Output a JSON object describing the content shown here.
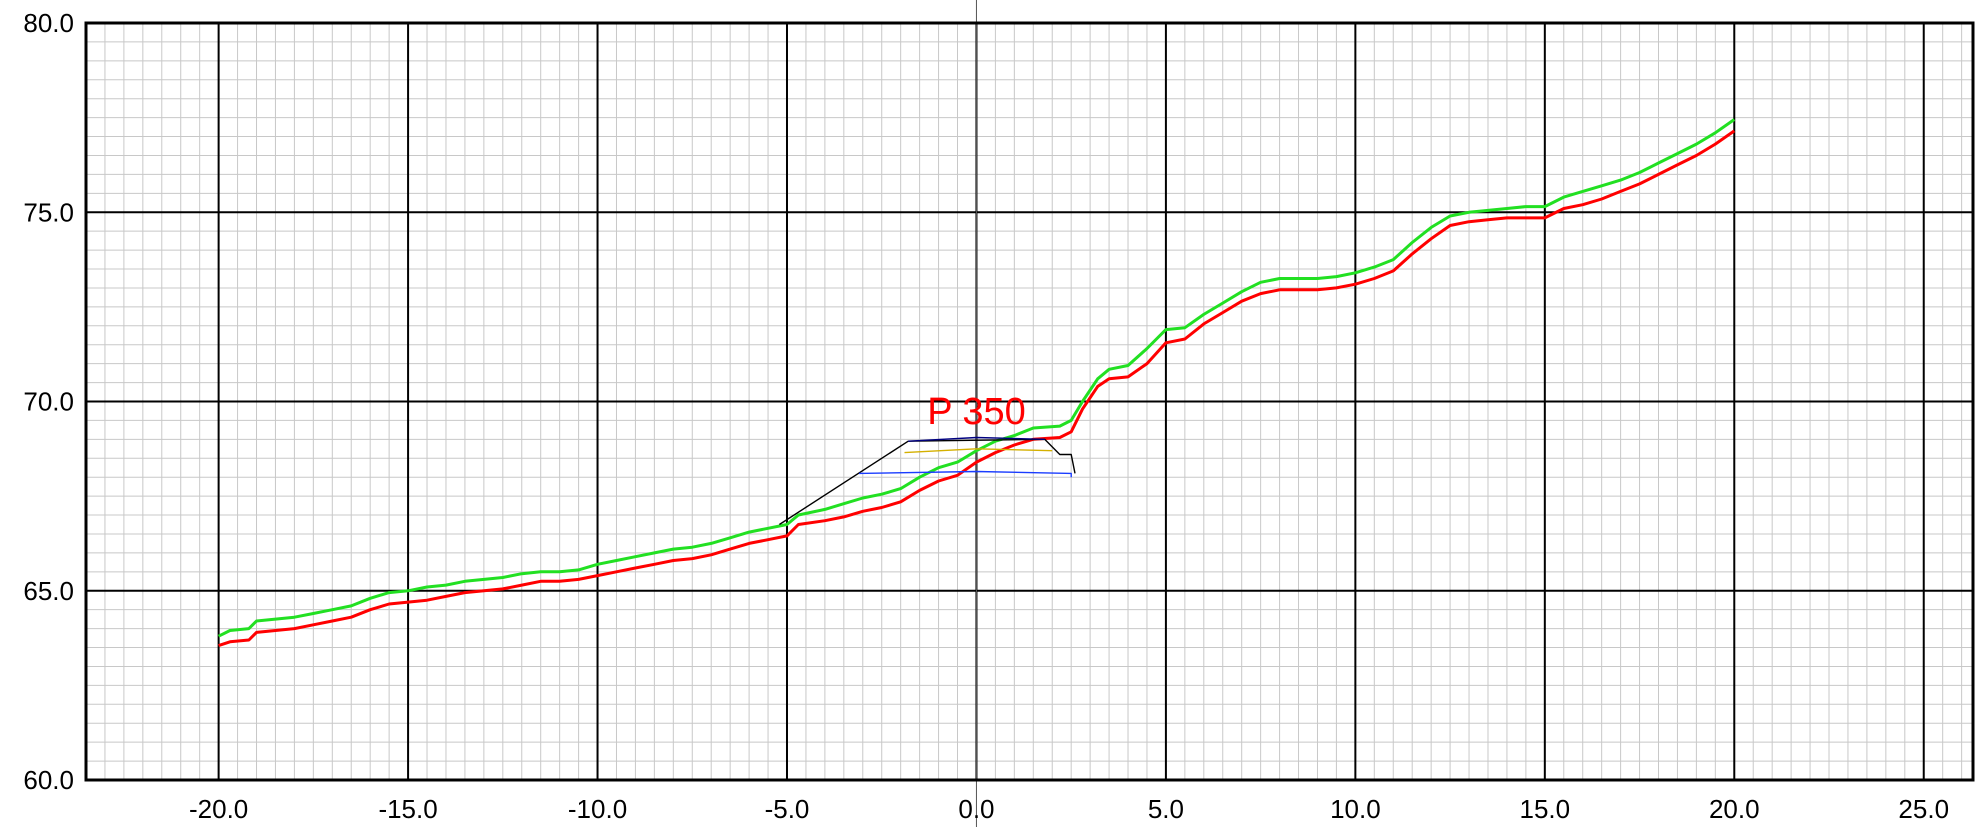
{
  "chart_data": {
    "type": "line",
    "title": "",
    "xlabel": "",
    "ylabel": "",
    "xlim": [
      -23.5,
      26.3
    ],
    "ylim": [
      60,
      80
    ],
    "grid": true,
    "x_major_ticks": [
      -20,
      -15,
      -10,
      -5,
      0,
      5,
      10,
      15,
      20,
      25
    ],
    "x_tick_labels": [
      "-20.0",
      "-15.0",
      "-10.0",
      "-5.0",
      "0.0",
      "5.0",
      "10.0",
      "15.0",
      "20.0",
      "25.0"
    ],
    "y_major_ticks": [
      60,
      65,
      70,
      75,
      80
    ],
    "y_tick_labels": [
      "60.0",
      "65.0",
      "70.0",
      "75.0",
      "80.0"
    ],
    "annotation": {
      "text": "P 350",
      "x": -1.3,
      "y": 69.4,
      "color": "#ff0000"
    },
    "series": [
      {
        "color": "#22e022",
        "points": [
          [
            -20,
            63.8
          ],
          [
            -19.7,
            63.95
          ],
          [
            -19.2,
            64.0
          ],
          [
            -19,
            64.2
          ],
          [
            -18.5,
            64.25
          ],
          [
            -18,
            64.3
          ],
          [
            -17.5,
            64.4
          ],
          [
            -17,
            64.5
          ],
          [
            -16.5,
            64.6
          ],
          [
            -16,
            64.8
          ],
          [
            -15.5,
            64.95
          ],
          [
            -15,
            65.0
          ],
          [
            -14.5,
            65.1
          ],
          [
            -14,
            65.15
          ],
          [
            -13.5,
            65.25
          ],
          [
            -13,
            65.3
          ],
          [
            -12.5,
            65.35
          ],
          [
            -12,
            65.45
          ],
          [
            -11.5,
            65.5
          ],
          [
            -11,
            65.5
          ],
          [
            -10.5,
            65.55
          ],
          [
            -10,
            65.7
          ],
          [
            -9.5,
            65.8
          ],
          [
            -9,
            65.9
          ],
          [
            -8.5,
            66.0
          ],
          [
            -8,
            66.1
          ],
          [
            -7.5,
            66.15
          ],
          [
            -7,
            66.25
          ],
          [
            -6.5,
            66.4
          ],
          [
            -6,
            66.55
          ],
          [
            -5.5,
            66.65
          ],
          [
            -5,
            66.75
          ],
          [
            -4.7,
            67.0
          ],
          [
            -4,
            67.15
          ],
          [
            -3.5,
            67.3
          ],
          [
            -3,
            67.45
          ],
          [
            -2.5,
            67.55
          ],
          [
            -2,
            67.7
          ],
          [
            -1.5,
            68.0
          ],
          [
            -1,
            68.25
          ],
          [
            -0.5,
            68.4
          ],
          [
            0,
            68.7
          ],
          [
            0.5,
            68.95
          ],
          [
            1,
            69.1
          ],
          [
            1.5,
            69.3
          ],
          [
            2.2,
            69.35
          ],
          [
            2.5,
            69.5
          ],
          [
            2.8,
            70.0
          ],
          [
            3.2,
            70.6
          ],
          [
            3.5,
            70.85
          ],
          [
            4,
            70.95
          ],
          [
            4.5,
            71.4
          ],
          [
            5,
            71.9
          ],
          [
            5.5,
            71.95
          ],
          [
            6,
            72.3
          ],
          [
            6.5,
            72.6
          ],
          [
            7,
            72.9
          ],
          [
            7.5,
            73.15
          ],
          [
            8,
            73.25
          ],
          [
            8.5,
            73.25
          ],
          [
            9,
            73.25
          ],
          [
            9.5,
            73.3
          ],
          [
            10,
            73.4
          ],
          [
            10.5,
            73.55
          ],
          [
            11,
            73.75
          ],
          [
            11.5,
            74.2
          ],
          [
            12,
            74.6
          ],
          [
            12.5,
            74.9
          ],
          [
            13,
            75.0
          ],
          [
            13.5,
            75.05
          ],
          [
            14,
            75.1
          ],
          [
            14.5,
            75.15
          ],
          [
            15,
            75.15
          ],
          [
            15.5,
            75.4
          ],
          [
            16,
            75.55
          ],
          [
            16.5,
            75.7
          ],
          [
            17,
            75.85
          ],
          [
            17.5,
            76.05
          ],
          [
            18,
            76.3
          ],
          [
            18.5,
            76.55
          ],
          [
            19,
            76.8
          ],
          [
            19.5,
            77.1
          ],
          [
            20,
            77.45
          ]
        ]
      },
      {
        "color": "#ff0000",
        "points": [
          [
            -20,
            63.55
          ],
          [
            -19.7,
            63.65
          ],
          [
            -19.2,
            63.7
          ],
          [
            -19,
            63.9
          ],
          [
            -18.5,
            63.95
          ],
          [
            -18,
            64.0
          ],
          [
            -17.5,
            64.1
          ],
          [
            -17,
            64.2
          ],
          [
            -16.5,
            64.3
          ],
          [
            -16,
            64.5
          ],
          [
            -15.5,
            64.65
          ],
          [
            -15,
            64.7
          ],
          [
            -14.5,
            64.75
          ],
          [
            -14,
            64.85
          ],
          [
            -13.5,
            64.95
          ],
          [
            -13,
            65.0
          ],
          [
            -12.5,
            65.05
          ],
          [
            -12,
            65.15
          ],
          [
            -11.5,
            65.25
          ],
          [
            -11,
            65.25
          ],
          [
            -10.5,
            65.3
          ],
          [
            -10,
            65.4
          ],
          [
            -9.5,
            65.5
          ],
          [
            -9,
            65.6
          ],
          [
            -8.5,
            65.7
          ],
          [
            -8,
            65.8
          ],
          [
            -7.5,
            65.85
          ],
          [
            -7,
            65.95
          ],
          [
            -6.5,
            66.1
          ],
          [
            -6,
            66.25
          ],
          [
            -5.5,
            66.35
          ],
          [
            -5,
            66.45
          ],
          [
            -4.7,
            66.75
          ],
          [
            -4,
            66.85
          ],
          [
            -3.5,
            66.95
          ],
          [
            -3,
            67.1
          ],
          [
            -2.5,
            67.2
          ],
          [
            -2,
            67.35
          ],
          [
            -1.5,
            67.65
          ],
          [
            -1,
            67.9
          ],
          [
            -0.5,
            68.05
          ],
          [
            0,
            68.4
          ],
          [
            0.5,
            68.65
          ],
          [
            1,
            68.85
          ],
          [
            1.5,
            69.0
          ],
          [
            2.2,
            69.05
          ],
          [
            2.5,
            69.2
          ],
          [
            2.8,
            69.8
          ],
          [
            3.2,
            70.4
          ],
          [
            3.5,
            70.6
          ],
          [
            4,
            70.65
          ],
          [
            4.5,
            71.0
          ],
          [
            5,
            71.55
          ],
          [
            5.5,
            71.65
          ],
          [
            6,
            72.05
          ],
          [
            6.5,
            72.35
          ],
          [
            7,
            72.65
          ],
          [
            7.5,
            72.85
          ],
          [
            8,
            72.95
          ],
          [
            8.5,
            72.95
          ],
          [
            9,
            72.95
          ],
          [
            9.5,
            73.0
          ],
          [
            10,
            73.1
          ],
          [
            10.5,
            73.25
          ],
          [
            11,
            73.45
          ],
          [
            11.5,
            73.9
          ],
          [
            12,
            74.3
          ],
          [
            12.5,
            74.65
          ],
          [
            13,
            74.75
          ],
          [
            13.5,
            74.8
          ],
          [
            14,
            74.85
          ],
          [
            14.5,
            74.85
          ],
          [
            15,
            74.85
          ],
          [
            15.5,
            75.1
          ],
          [
            16,
            75.2
          ],
          [
            16.5,
            75.35
          ],
          [
            17,
            75.55
          ],
          [
            17.5,
            75.75
          ],
          [
            18,
            76.0
          ],
          [
            18.5,
            76.25
          ],
          [
            19,
            76.5
          ],
          [
            19.5,
            76.8
          ],
          [
            20,
            77.15
          ]
        ]
      },
      {
        "color": "#000000",
        "points": [
          [
            -5.2,
            66.75
          ],
          [
            -1.8,
            68.95
          ],
          [
            1.8,
            69.0
          ],
          [
            2.2,
            68.6
          ],
          [
            2.5,
            68.6
          ],
          [
            2.6,
            68.1
          ]
        ]
      },
      {
        "color": "#000080",
        "points": [
          [
            -1.8,
            68.95
          ],
          [
            0,
            69.05
          ],
          [
            1.8,
            69.0
          ]
        ]
      },
      {
        "color": "#d4b000",
        "points": [
          [
            -1.9,
            68.65
          ],
          [
            0,
            68.75
          ],
          [
            2,
            68.7
          ]
        ]
      },
      {
        "color": "#1a3cff",
        "points": [
          [
            -3.1,
            68.1
          ],
          [
            0,
            68.15
          ],
          [
            2.5,
            68.1
          ],
          [
            2.5,
            68.0
          ]
        ]
      }
    ]
  }
}
